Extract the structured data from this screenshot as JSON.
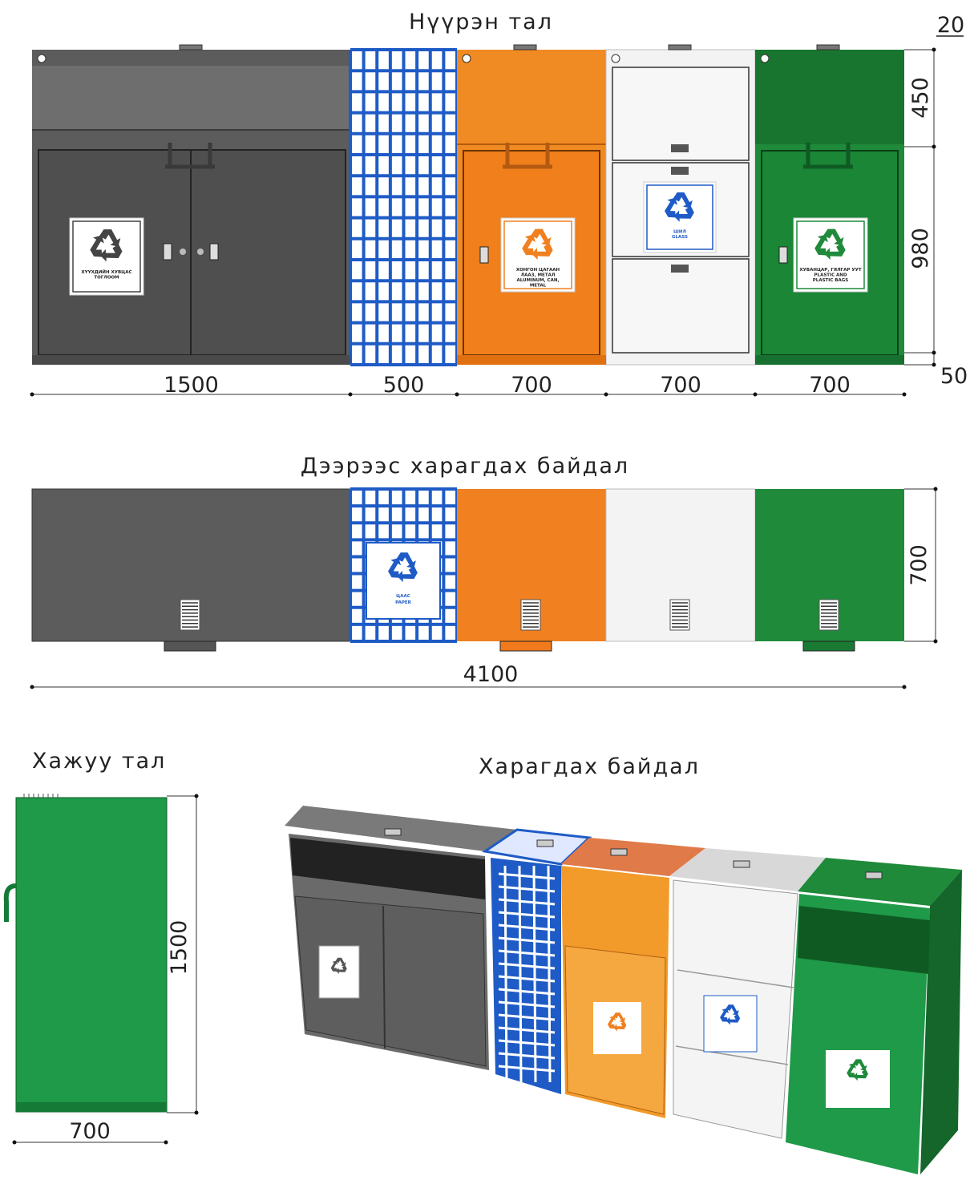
{
  "front_view": {
    "title": "Нүүрэн тал",
    "widths": [
      "1500",
      "500",
      "700",
      "700",
      "700"
    ],
    "heights": [
      "20",
      "450",
      "980",
      "50"
    ],
    "labels": {
      "clothes": [
        "ХҮҮХДИЙН ХУВЦАС",
        "ТОГЛООМ"
      ],
      "metal": [
        "ХОНГОН ЦАГААН",
        "ЛААЗ, МЕТАЛ",
        "ALUMINUM, CAN,",
        "METAL"
      ],
      "glass": [
        "ШИЛ",
        "GLASS"
      ],
      "plastic": [
        "ХУВАНЦАР, ГЯЛГАР УУТ",
        "PLASTIC AND",
        "PLASTIC BAGS"
      ]
    }
  },
  "top_view": {
    "title": "Дээрээс харагдах байдал",
    "total_width": "4100",
    "depth": "700",
    "label": [
      "ЦААС",
      "PAPER"
    ]
  },
  "side_view": {
    "title": "Хажуу тал",
    "height": "1500",
    "depth": "700"
  },
  "perspective_view": {
    "title": "Харагдах байдал"
  }
}
